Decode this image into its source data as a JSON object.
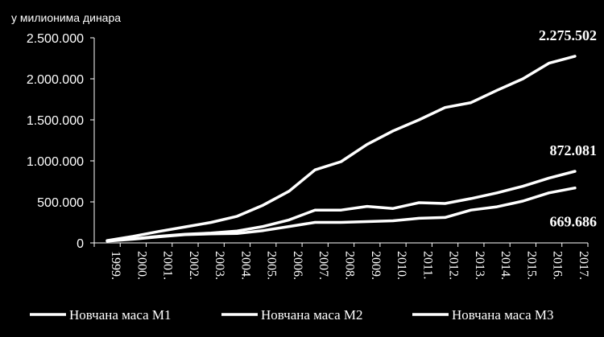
{
  "chart_data": {
    "type": "line",
    "unit_label": "у милионима  динара",
    "categories": [
      "1999.",
      "2000.",
      "2001.",
      "2002.",
      "2003.",
      "2004.",
      "2005.",
      "2006.",
      "2007.",
      "2008.",
      "2009.",
      "2010.",
      "2011.",
      "2012.",
      "2013.",
      "2014.",
      "2015.",
      "2016.",
      "2017."
    ],
    "ylim": [
      0,
      2500000
    ],
    "yticks": [
      0,
      500000,
      1000000,
      1500000,
      2000000,
      2500000
    ],
    "ytick_labels": [
      "0",
      "500.000",
      "1.000.000",
      "1.500.000",
      "2.000.000",
      "2.500.000"
    ],
    "grid": false,
    "legend_position": "bottom",
    "colors": {
      "background": "#000000",
      "foreground": "#ffffff"
    },
    "series": [
      {
        "name": "Новчана маса М1",
        "values": [
          22000,
          45000,
          75000,
          100000,
          110000,
          115000,
          150000,
          200000,
          250000,
          250000,
          260000,
          270000,
          300000,
          310000,
          400000,
          440000,
          510000,
          610000,
          669686
        ]
      },
      {
        "name": "Новчана маса М2",
        "values": [
          25000,
          50000,
          80000,
          105000,
          120000,
          145000,
          200000,
          280000,
          400000,
          400000,
          445000,
          420000,
          490000,
          480000,
          540000,
          610000,
          690000,
          790000,
          872081
        ]
      },
      {
        "name": "Новчана маса М3",
        "values": [
          28000,
          80000,
          140000,
          195000,
          250000,
          325000,
          460000,
          630000,
          890000,
          990000,
          1200000,
          1365000,
          1500000,
          1650000,
          1710000,
          1860000,
          2000000,
          2190000,
          2275502
        ]
      }
    ],
    "annotations": [
      {
        "text": "2.275.502",
        "series": 2
      },
      {
        "text": "872.081",
        "series": 1
      },
      {
        "text": "669.686",
        "series": 0
      }
    ]
  }
}
